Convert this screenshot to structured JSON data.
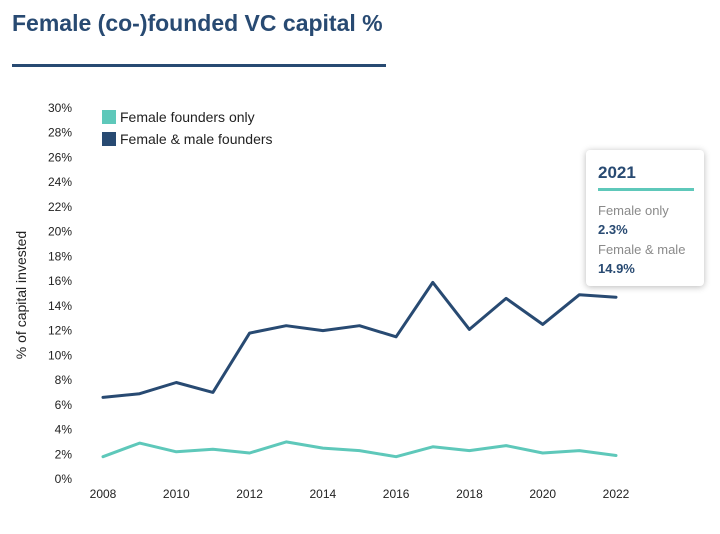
{
  "title": "Female (co-)founded VC capital %",
  "tooltip": {
    "year": "2021",
    "female_only_label": "Female only",
    "female_only_value": "2.3%",
    "female_male_label": "Female & male",
    "female_male_value": "14.9%"
  },
  "chart_data": {
    "type": "line",
    "title": "",
    "xlabel": "",
    "ylabel": "% of capital invested",
    "x": [
      2008,
      2009,
      2010,
      2011,
      2012,
      2013,
      2014,
      2015,
      2016,
      2017,
      2018,
      2019,
      2020,
      2021,
      2022
    ],
    "xticks": [
      "2008",
      "2010",
      "2012",
      "2014",
      "2016",
      "2018",
      "2020",
      "2022"
    ],
    "yticks": [
      "0%",
      "2%",
      "4%",
      "6%",
      "8%",
      "10%",
      "12%",
      "14%",
      "16%",
      "18%",
      "20%",
      "22%",
      "24%",
      "26%",
      "28%",
      "30%"
    ],
    "ylim": [
      0,
      30
    ],
    "grid": false,
    "legend_position": "top-left",
    "series": [
      {
        "name": "Female founders only",
        "color": "#5ec8ba",
        "values": [
          1.8,
          2.9,
          2.2,
          2.4,
          2.1,
          3.0,
          2.5,
          2.3,
          1.8,
          2.6,
          2.3,
          2.7,
          2.1,
          2.3,
          1.9
        ]
      },
      {
        "name": "Female & male founders",
        "color": "#284a72",
        "values": [
          6.6,
          6.9,
          7.8,
          7.0,
          11.8,
          12.4,
          12.0,
          12.4,
          11.5,
          15.9,
          12.1,
          14.6,
          12.5,
          14.9,
          14.7
        ]
      }
    ]
  }
}
